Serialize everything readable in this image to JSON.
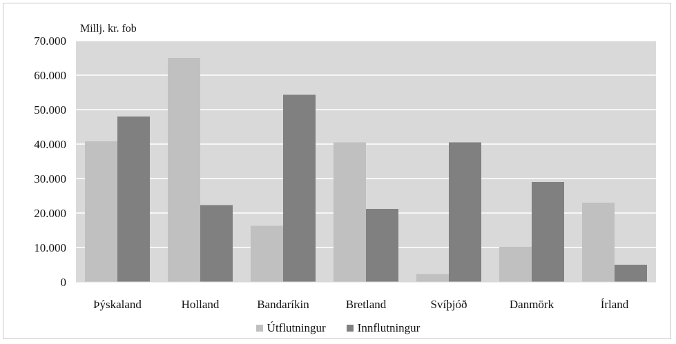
{
  "chart_data": {
    "type": "bar",
    "unit_label": "Millj. kr. fob",
    "categories": [
      "Þýskaland",
      "Holland",
      "Bandaríkin",
      "Bretland",
      "Svíþjóð",
      "Danmörk",
      "Írland"
    ],
    "series": [
      {
        "name": "Útflutningur",
        "color": "#c0c0c0",
        "values": [
          40800,
          65000,
          16300,
          40500,
          2300,
          10200,
          23000
        ]
      },
      {
        "name": "Innflutningur",
        "color": "#808080",
        "values": [
          48000,
          22300,
          54300,
          21200,
          40500,
          29000,
          5000
        ]
      }
    ],
    "y_ticks": [
      "0",
      "10.000",
      "20.000",
      "30.000",
      "40.000",
      "50.000",
      "60.000",
      "70.000"
    ],
    "ylim": [
      0,
      70000
    ],
    "grid": true,
    "plot_background": "#d9d9d9",
    "gridline_color": "#ffffff",
    "legend_position": "bottom"
  }
}
